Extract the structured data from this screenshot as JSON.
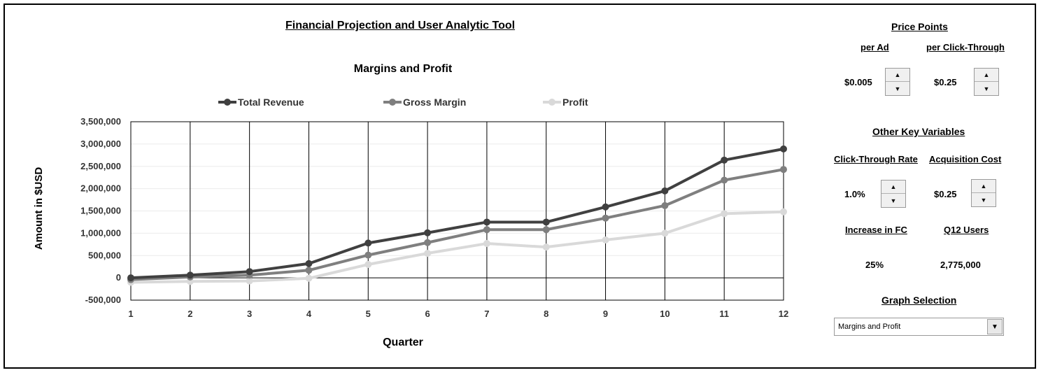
{
  "app_title": "Financial Projection and User Analytic Tool",
  "chart_data": {
    "type": "line",
    "title": "Margins and Profit",
    "xlabel": "Quarter",
    "ylabel": "Amount in $USD",
    "categories": [
      "1",
      "2",
      "3",
      "4",
      "5",
      "6",
      "7",
      "8",
      "9",
      "10",
      "11",
      "12"
    ],
    "ylim": [
      -500000,
      3500000
    ],
    "yticks": [
      -500000,
      0,
      500000,
      1000000,
      1500000,
      2000000,
      2500000,
      3000000,
      3500000
    ],
    "ytick_labels": [
      "-500,000",
      "0",
      "500,000",
      "1,000,000",
      "1,500,000",
      "2,000,000",
      "2,500,000",
      "3,000,000",
      "3,500,000"
    ],
    "legend_position": "top",
    "series": [
      {
        "name": "Total Revenue",
        "color": "#404040",
        "values": [
          0,
          60000,
          140000,
          320000,
          780000,
          1010000,
          1250000,
          1250000,
          1590000,
          1950000,
          2640000,
          2890000
        ]
      },
      {
        "name": "Gross Margin",
        "color": "#7f7f7f",
        "values": [
          -40000,
          20000,
          60000,
          170000,
          510000,
          790000,
          1080000,
          1080000,
          1340000,
          1620000,
          2190000,
          2430000
        ]
      },
      {
        "name": "Profit",
        "color": "#d9d9d9",
        "values": [
          -100000,
          -80000,
          -70000,
          -10000,
          300000,
          550000,
          770000,
          690000,
          850000,
          1000000,
          1440000,
          1480000
        ]
      }
    ]
  },
  "price_points": {
    "title": "Price Points",
    "per_ad_label": "per Ad",
    "per_ad_value": "$0.005",
    "per_click_label": "per Click-Through",
    "per_click_value": "$0.25"
  },
  "key_variables": {
    "title": "Other Key Variables",
    "ctr_label": "Click-Through Rate",
    "ctr_value": "1.0%",
    "acq_label": "Acquisition Cost",
    "acq_value": "$0.25",
    "fc_label": "Increase in FC",
    "fc_value": "25%",
    "users_label": "Q12 Users",
    "users_value": "2,775,000"
  },
  "graph_selection": {
    "title": "Graph Selection",
    "selected": "Margins and Profit"
  },
  "icons": {
    "spin_up": "triangle-up-icon",
    "spin_down": "triangle-down-icon",
    "dropdown": "chevron-down-icon"
  }
}
